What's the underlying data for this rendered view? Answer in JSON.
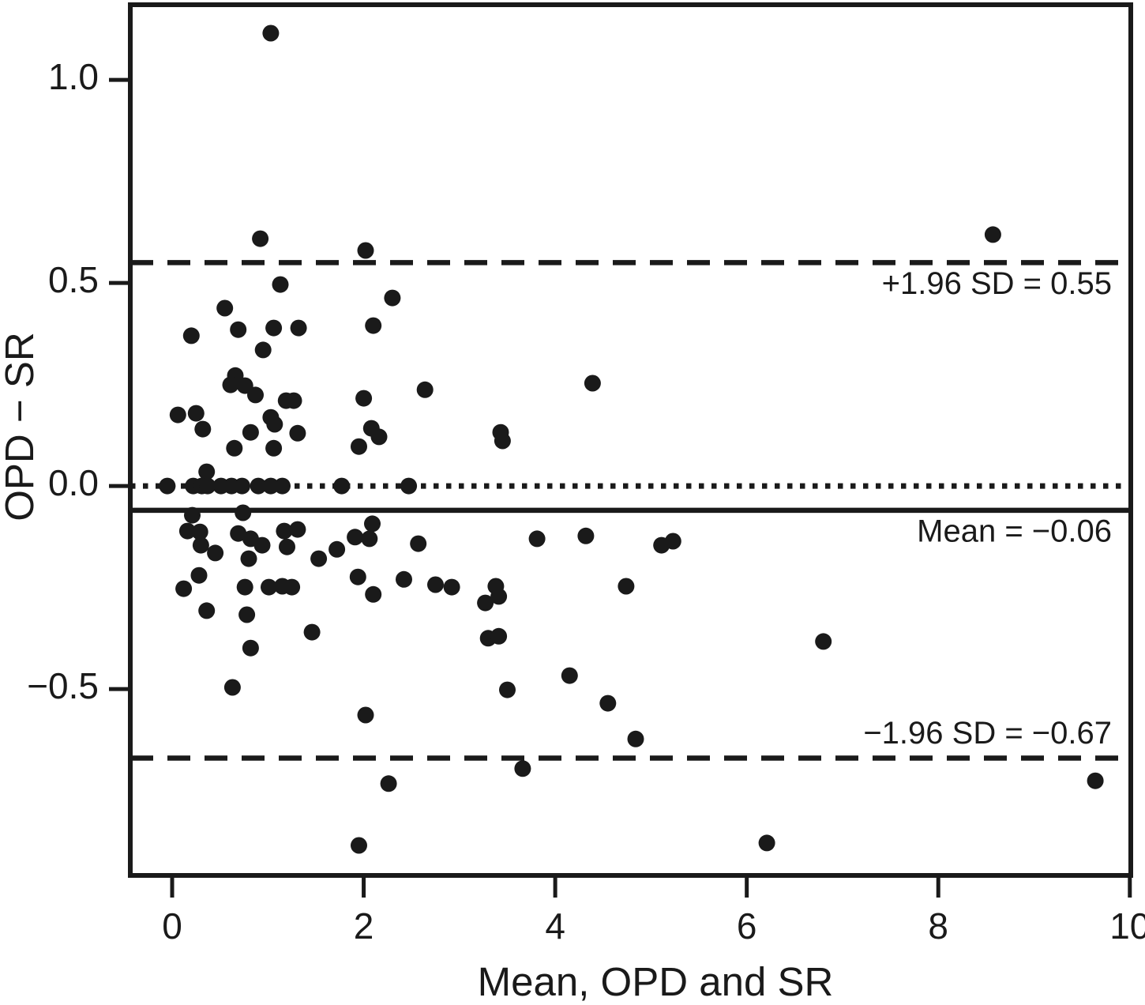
{
  "figure": {
    "background": "#ffffff",
    "ink_color": "#1a1a1a"
  },
  "chart_data": {
    "type": "scatter",
    "title": "",
    "xlabel": "Mean, OPD and SR",
    "ylabel": "OPD − SR",
    "xlim": [
      -0.437,
      10.01
    ],
    "ylim": [
      -0.959,
      1.185
    ],
    "x_ticks": [
      0,
      2,
      4,
      6,
      8,
      10
    ],
    "x_tick_labels": [
      "0",
      "2",
      "4",
      "6",
      "8",
      "10"
    ],
    "y_ticks": [
      1.0,
      0.5,
      0.0,
      -0.5
    ],
    "y_tick_labels": [
      "1.0",
      "0.5",
      "0.0",
      "−0.5"
    ],
    "grid": false,
    "legend": null,
    "marker": {
      "shape": "circle",
      "radius_px": 10.5
    },
    "reference_lines": [
      {
        "value": 0.55,
        "style": "dashed",
        "label": "+1.96 SD = 0.55",
        "label_side": "below"
      },
      {
        "value": 0.0,
        "style": "dotted",
        "label": "",
        "label_side": "none"
      },
      {
        "value": -0.06,
        "style": "solid",
        "label": "Mean = −0.06",
        "label_side": "below"
      },
      {
        "value": -0.67,
        "style": "dashed",
        "label": "−1.96 SD = −0.67",
        "label_side": "above"
      }
    ],
    "points": [
      [
        1.03,
        1.115
      ],
      [
        0.92,
        0.609
      ],
      [
        2.02,
        0.58
      ],
      [
        1.13,
        0.496
      ],
      [
        8.57,
        0.619
      ],
      [
        2.3,
        0.463
      ],
      [
        0.55,
        0.438
      ],
      [
        0.69,
        0.385
      ],
      [
        1.06,
        0.389
      ],
      [
        1.32,
        0.389
      ],
      [
        2.1,
        0.395
      ],
      [
        0.2,
        0.37
      ],
      [
        0.95,
        0.335
      ],
      [
        0.66,
        0.272
      ],
      [
        0.61,
        0.249
      ],
      [
        0.76,
        0.247
      ],
      [
        0.87,
        0.224
      ],
      [
        1.19,
        0.21
      ],
      [
        1.27,
        0.21
      ],
      [
        2.64,
        0.237
      ],
      [
        2.0,
        0.216
      ],
      [
        0.06,
        0.175
      ],
      [
        0.25,
        0.179
      ],
      [
        0.32,
        0.14
      ],
      [
        1.03,
        0.169
      ],
      [
        1.07,
        0.152
      ],
      [
        0.82,
        0.132
      ],
      [
        1.31,
        0.13
      ],
      [
        2.08,
        0.142
      ],
      [
        2.16,
        0.121
      ],
      [
        1.95,
        0.097
      ],
      [
        0.65,
        0.093
      ],
      [
        1.06,
        0.093
      ],
      [
        0.36,
        0.035
      ],
      [
        3.43,
        0.132
      ],
      [
        3.45,
        0.111
      ],
      [
        4.39,
        0.253
      ],
      [
        -0.05,
        0.0
      ],
      [
        0.22,
        0.0
      ],
      [
        0.31,
        0.0
      ],
      [
        0.37,
        0.0
      ],
      [
        0.51,
        0.0
      ],
      [
        0.62,
        0.0
      ],
      [
        0.73,
        0.0
      ],
      [
        0.9,
        0.0
      ],
      [
        1.03,
        0.0
      ],
      [
        1.15,
        0.0
      ],
      [
        1.77,
        0.0
      ],
      [
        2.47,
        0.0
      ],
      [
        0.21,
        -0.072
      ],
      [
        0.74,
        -0.066
      ],
      [
        0.16,
        -0.111
      ],
      [
        0.29,
        -0.113
      ],
      [
        0.69,
        -0.117
      ],
      [
        1.17,
        -0.111
      ],
      [
        1.31,
        -0.107
      ],
      [
        0.82,
        -0.13
      ],
      [
        0.94,
        -0.146
      ],
      [
        1.2,
        -0.15
      ],
      [
        0.3,
        -0.146
      ],
      [
        0.45,
        -0.165
      ],
      [
        0.8,
        -0.179
      ],
      [
        1.53,
        -0.179
      ],
      [
        1.72,
        -0.156
      ],
      [
        1.91,
        -0.126
      ],
      [
        2.09,
        -0.093
      ],
      [
        2.06,
        -0.13
      ],
      [
        2.57,
        -0.142
      ],
      [
        0.28,
        -0.22
      ],
      [
        0.12,
        -0.253
      ],
      [
        1.94,
        -0.224
      ],
      [
        2.42,
        -0.23
      ],
      [
        2.1,
        -0.267
      ],
      [
        2.75,
        -0.243
      ],
      [
        2.92,
        -0.249
      ],
      [
        0.76,
        -0.249
      ],
      [
        1.01,
        -0.249
      ],
      [
        1.15,
        -0.247
      ],
      [
        1.25,
        -0.249
      ],
      [
        0.36,
        -0.307
      ],
      [
        0.78,
        -0.317
      ],
      [
        1.46,
        -0.36
      ],
      [
        0.82,
        -0.399
      ],
      [
        0.63,
        -0.496
      ],
      [
        2.02,
        -0.564
      ],
      [
        3.81,
        -0.13
      ],
      [
        4.32,
        -0.123
      ],
      [
        5.11,
        -0.146
      ],
      [
        5.23,
        -0.136
      ],
      [
        3.38,
        -0.247
      ],
      [
        3.27,
        -0.288
      ],
      [
        3.41,
        -0.272
      ],
      [
        4.74,
        -0.247
      ],
      [
        3.3,
        -0.375
      ],
      [
        3.41,
        -0.37
      ],
      [
        4.15,
        -0.467
      ],
      [
        3.5,
        -0.502
      ],
      [
        4.55,
        -0.535
      ],
      [
        4.84,
        -0.623
      ],
      [
        3.66,
        -0.696
      ],
      [
        2.26,
        -0.733
      ],
      [
        1.95,
        -0.885
      ],
      [
        6.21,
        -0.879
      ],
      [
        9.64,
        -0.726
      ],
      [
        6.8,
        -0.383
      ]
    ]
  }
}
